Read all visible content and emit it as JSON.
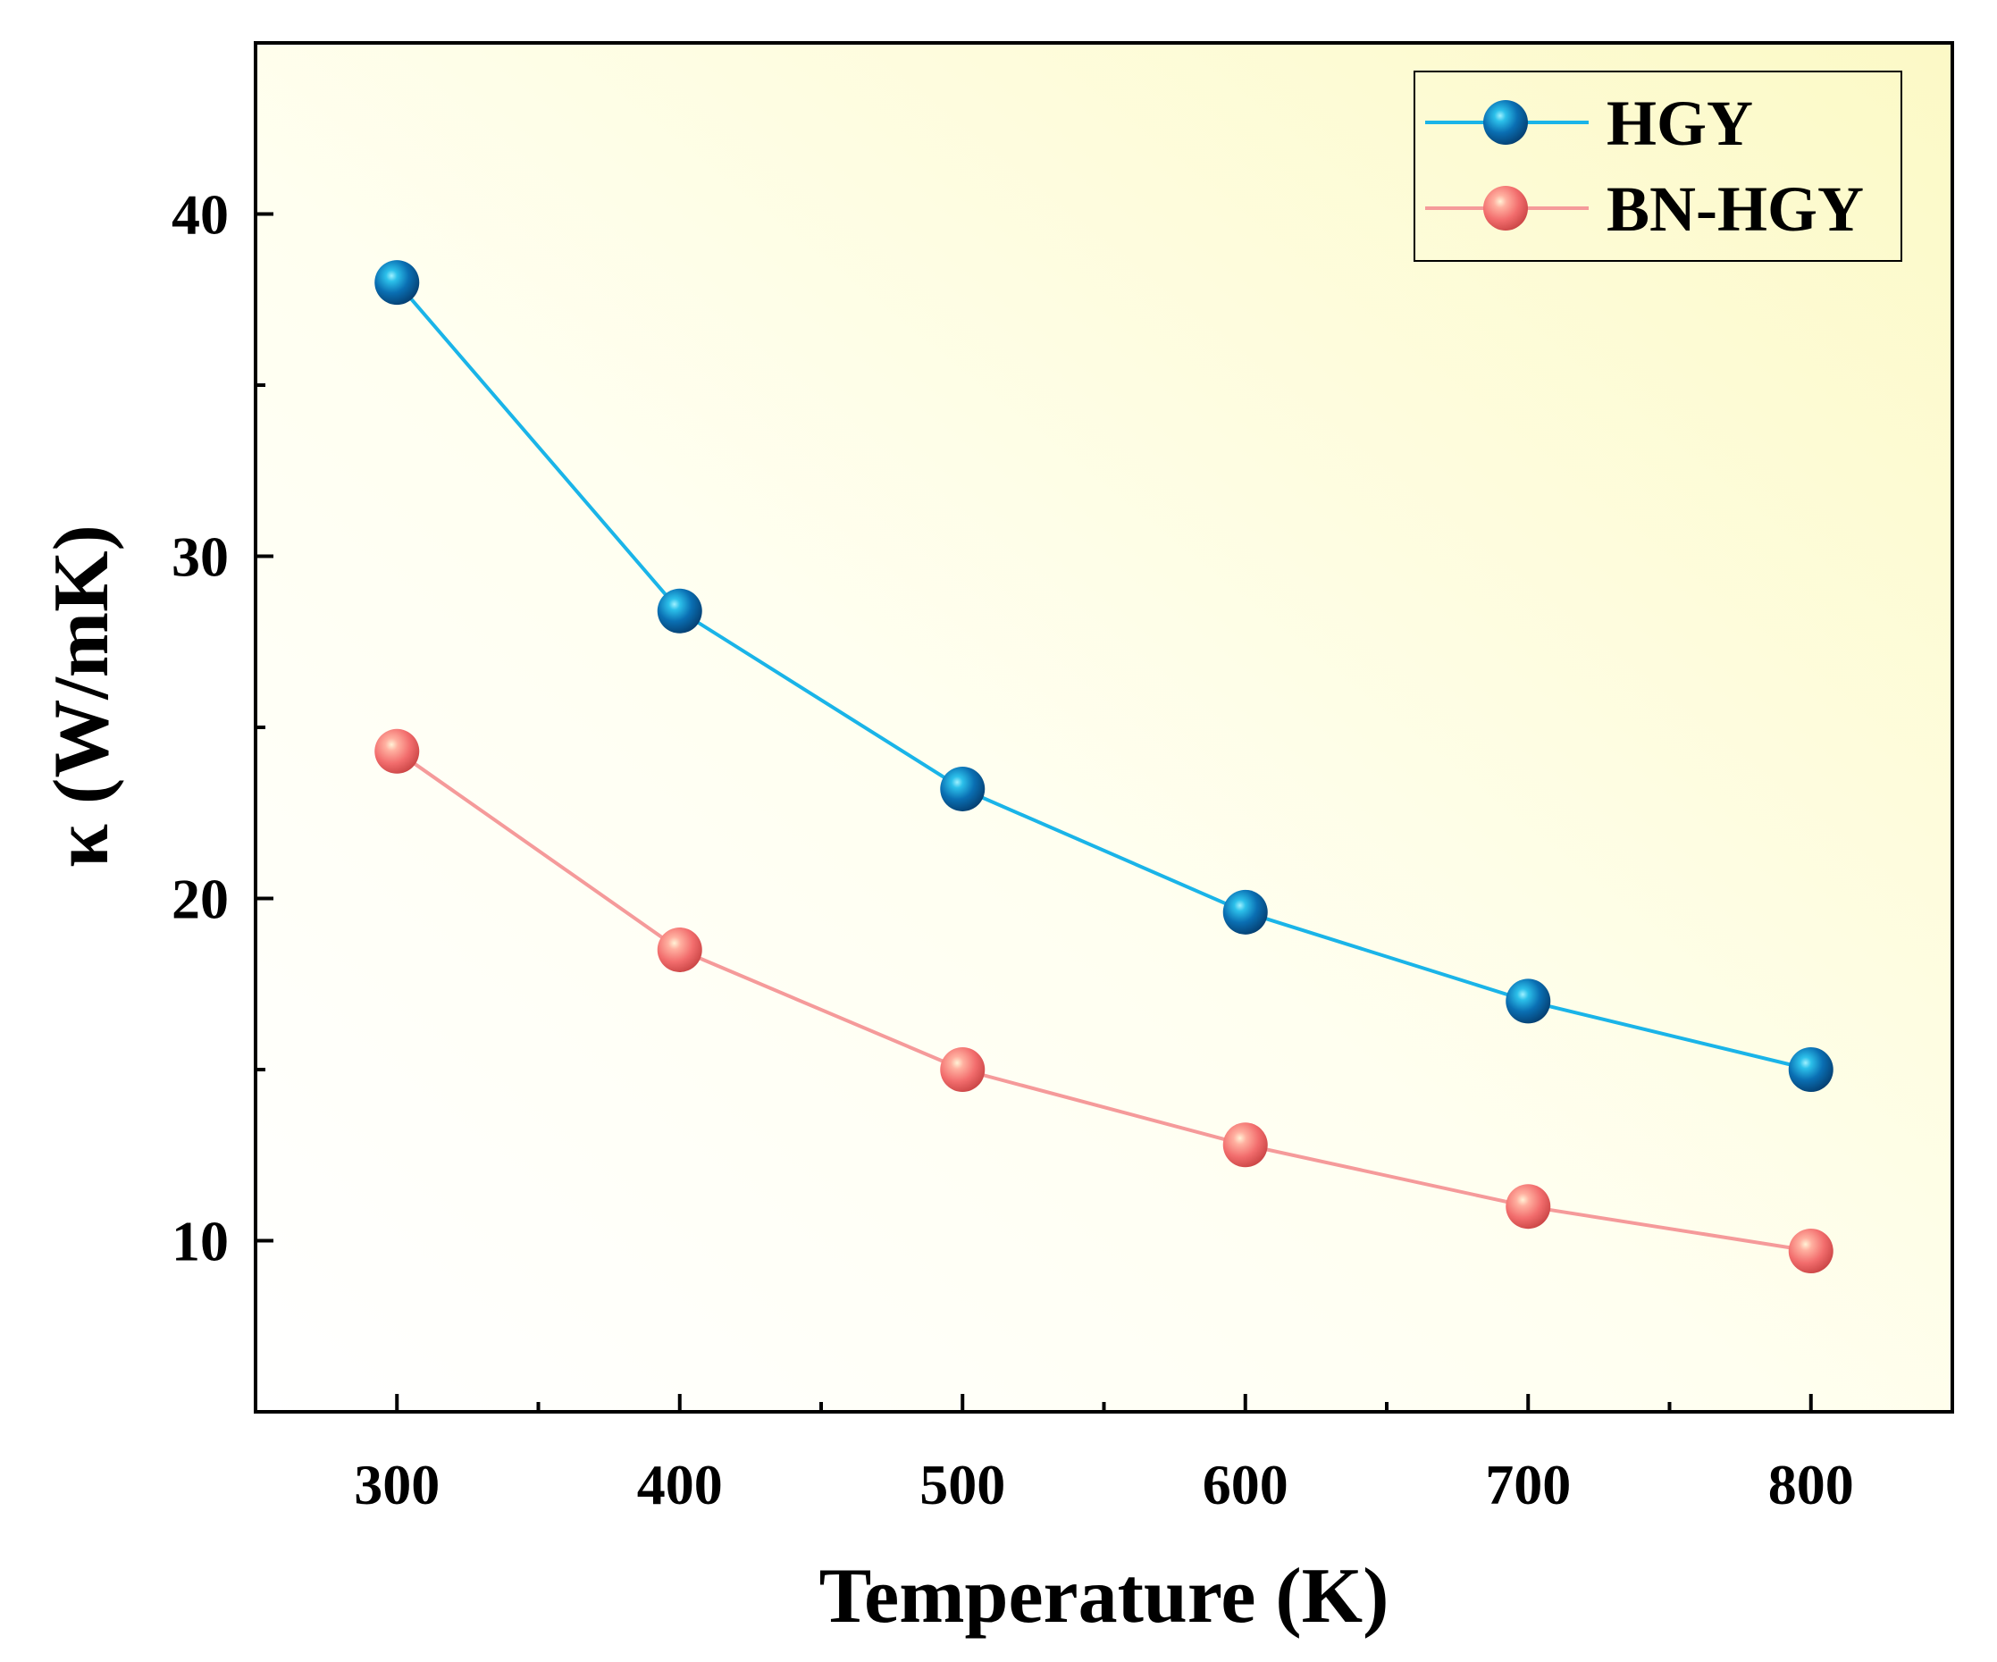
{
  "chart_data": {
    "type": "line",
    "title": "",
    "xlabel": "Temperature (K)",
    "ylabel": "κ (W/mK)",
    "x": [
      300,
      400,
      500,
      600,
      700,
      800
    ],
    "xlim": [
      250,
      850
    ],
    "ylim": [
      5,
      45
    ],
    "xticks": [
      300,
      400,
      500,
      600,
      700,
      800
    ],
    "xtick_labels": [
      "300",
      "400",
      "500",
      "600",
      "700",
      "800"
    ],
    "xminor": [
      350,
      450,
      550,
      650,
      750
    ],
    "yticks": [
      10,
      20,
      30,
      40
    ],
    "ytick_labels": [
      "10",
      "20",
      "30",
      "40"
    ],
    "yminor": [
      15,
      25,
      35
    ],
    "grid": false,
    "legend_position": "top-right",
    "series": [
      {
        "name": "HGY",
        "color": "#1ab4e8",
        "marker_color": "#0a6fb3",
        "values": [
          38.0,
          28.4,
          23.2,
          19.6,
          17.0,
          15.0
        ]
      },
      {
        "name": "BN-HGY",
        "color": "#f59a9a",
        "marker_color": "#f26d6d",
        "values": [
          24.3,
          18.5,
          15.0,
          12.8,
          11.0,
          9.7
        ]
      }
    ]
  }
}
